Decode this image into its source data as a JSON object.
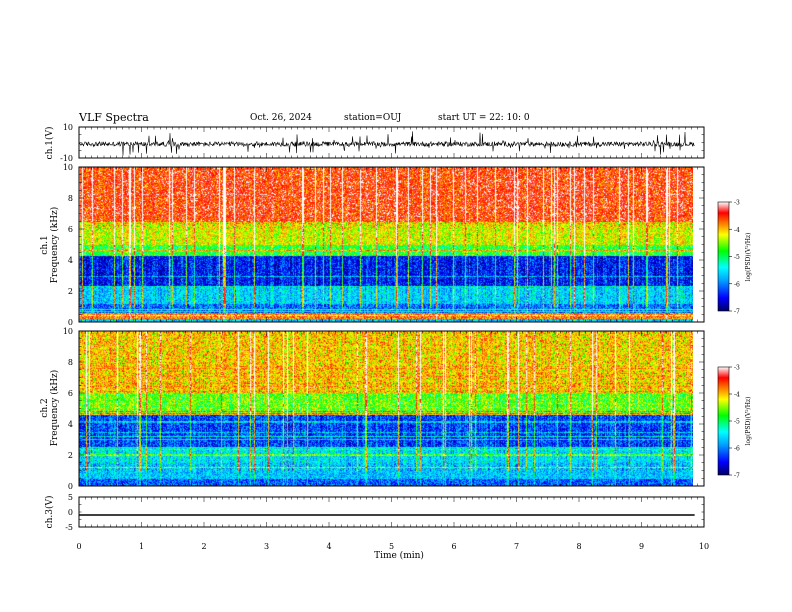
{
  "header": {
    "title": "VLF Spectra",
    "date": "Oct. 26, 2024",
    "station": "station=OUJ",
    "start": "start UT =  22: 10: 0"
  },
  "chart_data": [
    {
      "type": "line",
      "name": "ch1-waveform",
      "ylabel": "ch.1(V)",
      "ylim": [
        -10,
        10
      ],
      "yticks": [
        "10",
        "-10"
      ],
      "xlim": [
        0,
        10
      ],
      "trace_end_min": 9.85,
      "baseline_v": -1,
      "noise_amplitude_v": 3
    },
    {
      "type": "heatmap",
      "name": "ch1-spectrogram",
      "ylabel": "Frequency (kHz)",
      "channel_label": "ch.1",
      "xlim": [
        0,
        10
      ],
      "ylim": [
        0,
        10
      ],
      "yticks": [
        "0",
        "2",
        "4",
        "6",
        "8",
        "10"
      ],
      "colorbar": {
        "label": "log(PSD)(V²/Hz)",
        "range": [
          -7,
          -3
        ],
        "ticks": [
          "-3",
          "-4",
          "-5",
          "-6",
          "-7"
        ]
      }
    },
    {
      "type": "heatmap",
      "name": "ch2-spectrogram",
      "ylabel": "Frequency (kHz)",
      "channel_label": "ch.2",
      "xlim": [
        0,
        10
      ],
      "ylim": [
        0,
        10
      ],
      "yticks": [
        "0",
        "2",
        "4",
        "6",
        "8",
        "10"
      ],
      "colorbar": {
        "label": "log(PSD)(V²/Hz)",
        "range": [
          -7,
          -3
        ],
        "ticks": [
          "-3",
          "-4",
          "-5",
          "-6",
          "-7"
        ]
      }
    },
    {
      "type": "line",
      "name": "ch3-waveform",
      "ylabel": "ch.3(V)",
      "ylim": [
        -5,
        5
      ],
      "yticks": [
        "5",
        "0",
        "-5"
      ],
      "xlim": [
        0,
        10
      ],
      "trace_end_min": 9.85,
      "baseline_v": -1
    }
  ],
  "xaxis": {
    "label": "Time (min)",
    "ticks": [
      "0",
      "1",
      "2",
      "3",
      "4",
      "5",
      "6",
      "7",
      "8",
      "9",
      "10"
    ]
  },
  "colors": {
    "colormap": [
      "#000064",
      "#0000ff",
      "#00a0ff",
      "#00ffff",
      "#00ff00",
      "#ffff00",
      "#ff8000",
      "#ff0000",
      "#ffffff"
    ]
  }
}
